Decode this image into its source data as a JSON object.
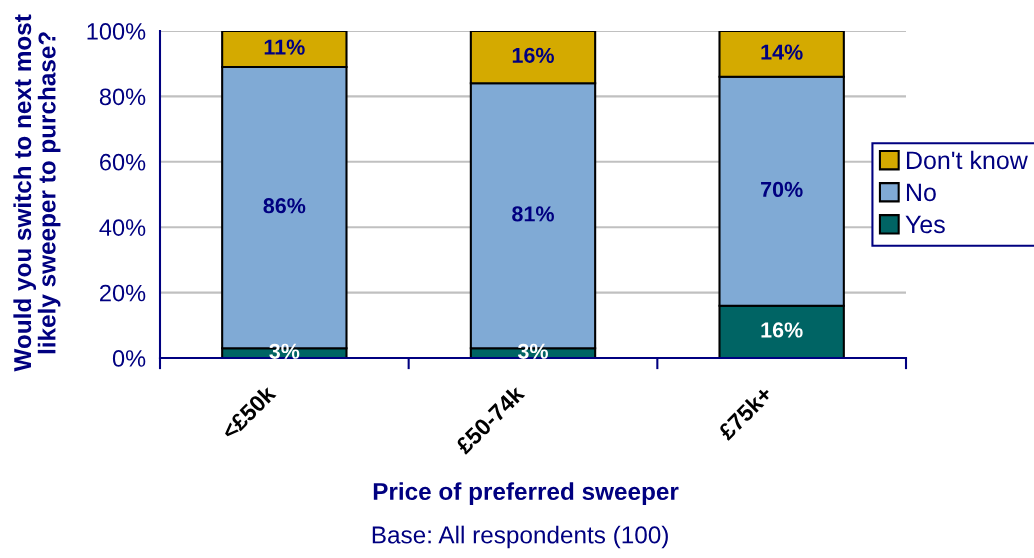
{
  "chart_data": {
    "type": "bar",
    "stacked": true,
    "categories": [
      "<£50k",
      "£50-74k",
      "£75k+"
    ],
    "series": [
      {
        "name": "Yes",
        "color": "#006464",
        "values": [
          3,
          3,
          16
        ],
        "value_labels": [
          "3%",
          "3%",
          "16%"
        ]
      },
      {
        "name": "No",
        "color": "#80aad5",
        "values": [
          86,
          81,
          70
        ],
        "value_labels": [
          "86%",
          "81%",
          "70%"
        ]
      },
      {
        "name": "Don't know",
        "color": "#d4aa00",
        "values": [
          11,
          16,
          14
        ],
        "value_labels": [
          "11%",
          "16%",
          "14%"
        ]
      }
    ],
    "ylim": [
      0,
      100
    ],
    "yticks": [
      {
        "value": 0,
        "label": "0%"
      },
      {
        "value": 20,
        "label": "20%"
      },
      {
        "value": 40,
        "label": "40%"
      },
      {
        "value": 60,
        "label": "60%"
      },
      {
        "value": 80,
        "label": "80%"
      },
      {
        "value": 100,
        "label": "100%"
      }
    ],
    "ylabel": "Would you switch to next most\nlikely sweeper to purchase?",
    "xlabel": "Price of preferred sweeper",
    "annotations": [
      "Base: All respondents (100)"
    ],
    "grid": "y",
    "legend": "right"
  }
}
